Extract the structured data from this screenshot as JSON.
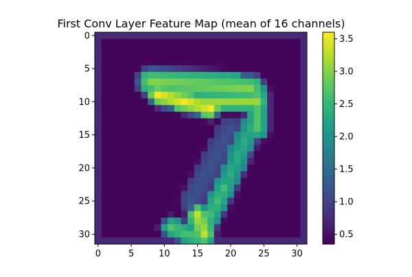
{
  "chart_data": {
    "type": "heatmap",
    "title": "First Conv Layer Feature Map (mean of 16 channels)",
    "xlabel": "",
    "ylabel": "",
    "xlim": [
      -0.5,
      31.5
    ],
    "ylim": [
      31.5,
      -0.5
    ],
    "x_ticks": [
      "0",
      "5",
      "10",
      "15",
      "20",
      "25",
      "30"
    ],
    "y_ticks": [
      "0",
      "5",
      "10",
      "15",
      "20",
      "25",
      "30"
    ],
    "colormap": "viridis",
    "colorbar": {
      "min": 0.35,
      "max": 3.6,
      "ticks": [
        "0.5",
        "1.0",
        "1.5",
        "2.0",
        "2.5",
        "3.0",
        "3.5"
      ]
    },
    "grid": false,
    "shape": [
      32,
      32
    ],
    "background_value": 0.38,
    "segments": [
      {
        "from": [
          7,
          8
        ],
        "to": [
          8,
          23
        ],
        "halfwidth": 1.9,
        "peak": 3.0
      },
      {
        "from": [
          9,
          9
        ],
        "to": [
          11,
          17
        ],
        "halfwidth": 1.3,
        "peak": 3.55
      },
      {
        "from": [
          10,
          16
        ],
        "to": [
          10,
          24
        ],
        "halfwidth": 1.2,
        "peak": 3.1
      },
      {
        "from": [
          9,
          24
        ],
        "to": [
          14,
          24
        ],
        "halfwidth": 1.5,
        "peak": 2.7
      },
      {
        "from": [
          14,
          23
        ],
        "to": [
          23,
          19
        ],
        "halfwidth": 1.6,
        "peak": 2.4
      },
      {
        "from": [
          14,
          20
        ],
        "to": [
          25,
          14
        ],
        "halfwidth": 1.8,
        "peak": 1.2
      },
      {
        "from": [
          23,
          19
        ],
        "to": [
          29,
          16
        ],
        "halfwidth": 1.5,
        "peak": 2.6
      },
      {
        "from": [
          27,
          15
        ],
        "to": [
          30,
          16
        ],
        "halfwidth": 1.3,
        "peak": 3.3
      },
      {
        "from": [
          29,
          11
        ],
        "to": [
          31,
          16
        ],
        "halfwidth": 1.4,
        "peak": 2.7
      }
    ]
  }
}
